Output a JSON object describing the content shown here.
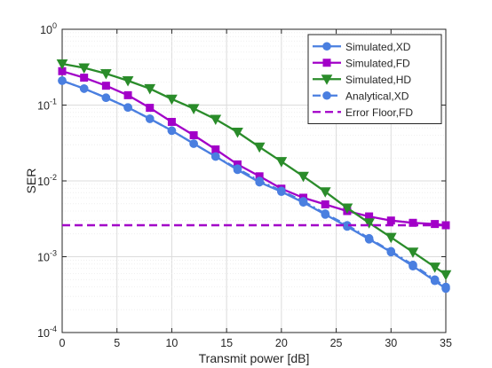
{
  "chart_data": {
    "type": "line",
    "xlabel": "Transmit power [dB]",
    "ylabel": "SER",
    "xlim": [
      0,
      35
    ],
    "ylim": [
      0.0001,
      1
    ],
    "yscale": "log",
    "grid": true,
    "minor_grid": true,
    "legend_position": "top-right",
    "x_ticks": [
      0,
      5,
      10,
      15,
      20,
      25,
      30,
      35
    ],
    "x_tick_labels": [
      "0",
      "5",
      "10",
      "15",
      "20",
      "25",
      "30",
      "35"
    ],
    "y_ticks": [
      0.0001,
      0.001,
      0.01,
      0.1,
      1
    ],
    "y_tick_labels": [
      {
        "base": "10",
        "exp": "-4"
      },
      {
        "base": "10",
        "exp": "-3"
      },
      {
        "base": "10",
        "exp": "-2"
      },
      {
        "base": "10",
        "exp": "-1"
      },
      {
        "base": "10",
        "exp": "0"
      }
    ],
    "series": [
      {
        "name": "Simulated,XD",
        "color": "#4a7fe0",
        "line": "solid",
        "marker": "circle",
        "x": [
          0,
          2,
          4,
          6,
          8,
          10,
          12,
          14,
          16,
          18,
          20,
          22,
          24,
          26,
          28,
          30,
          32,
          34,
          35
        ],
        "y": [
          0.21,
          0.165,
          0.125,
          0.093,
          0.066,
          0.046,
          0.031,
          0.021,
          0.014,
          0.0096,
          0.0072,
          0.0052,
          0.0036,
          0.0025,
          0.0017,
          0.00115,
          0.00075,
          0.00048,
          0.00038
        ]
      },
      {
        "name": "Simulated,FD",
        "color": "#a200c8",
        "line": "solid",
        "marker": "square",
        "x": [
          0,
          2,
          4,
          6,
          8,
          10,
          12,
          14,
          16,
          18,
          20,
          22,
          24,
          26,
          28,
          30,
          32,
          34,
          35
        ],
        "y": [
          0.28,
          0.23,
          0.18,
          0.135,
          0.092,
          0.06,
          0.04,
          0.026,
          0.0165,
          0.0115,
          0.0079,
          0.006,
          0.0049,
          0.004,
          0.0034,
          0.003,
          0.0028,
          0.0027,
          0.0026
        ]
      },
      {
        "name": "Simulated,HD",
        "color": "#2a8c2a",
        "line": "solid",
        "marker": "triangle-down",
        "x": [
          0,
          2,
          4,
          6,
          8,
          10,
          12,
          14,
          16,
          18,
          20,
          22,
          24,
          26,
          28,
          30,
          32,
          34,
          35
        ],
        "y": [
          0.35,
          0.31,
          0.26,
          0.21,
          0.165,
          0.12,
          0.09,
          0.065,
          0.044,
          0.028,
          0.018,
          0.0115,
          0.0072,
          0.0044,
          0.0028,
          0.0018,
          0.00115,
          0.00073,
          0.00058
        ]
      },
      {
        "name": "Analytical,XD",
        "color": "#4a7fe0",
        "line": "dashdot",
        "marker": "circle",
        "x": [
          0,
          2,
          4,
          6,
          8,
          10,
          12,
          14,
          16,
          18,
          20,
          22,
          24,
          26,
          28,
          30,
          32,
          34,
          35
        ],
        "y": [
          0.21,
          0.165,
          0.125,
          0.093,
          0.066,
          0.046,
          0.031,
          0.021,
          0.0145,
          0.01,
          0.0074,
          0.0054,
          0.0037,
          0.0026,
          0.00175,
          0.00118,
          0.00078,
          0.0005,
          0.0004
        ]
      },
      {
        "name": "Error Floor,FD",
        "color": "#a200c8",
        "line": "dashed",
        "marker": "none",
        "x": [
          0,
          35
        ],
        "y": [
          0.0026,
          0.0026
        ]
      }
    ]
  }
}
